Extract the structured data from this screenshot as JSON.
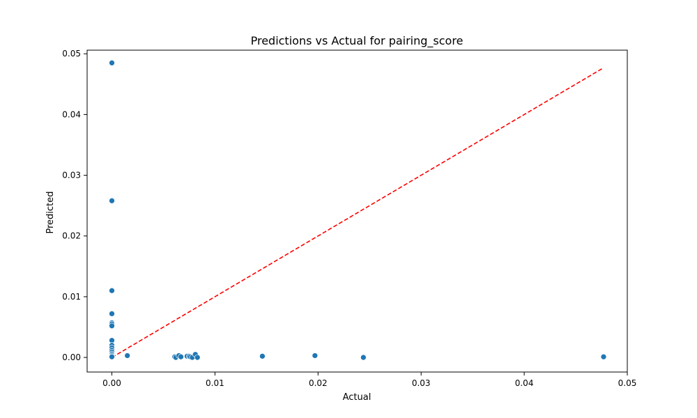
{
  "chart_data": {
    "type": "scatter",
    "title": "Predictions vs Actual for pairing_score",
    "xlabel": "Actual",
    "ylabel": "Predicted",
    "xlim": [
      -0.0024,
      0.05
    ],
    "ylim": [
      -0.0024,
      0.0506
    ],
    "xticks": [
      0.0,
      0.01,
      0.02,
      0.03,
      0.04,
      0.05
    ],
    "xtick_labels": [
      "0.00",
      "0.01",
      "0.02",
      "0.03",
      "0.04",
      "0.05"
    ],
    "yticks": [
      0.0,
      0.01,
      0.02,
      0.03,
      0.04,
      0.05
    ],
    "ytick_labels": [
      "0.00",
      "0.01",
      "0.02",
      "0.03",
      "0.04",
      "0.05"
    ],
    "grid": false,
    "colors": {
      "points": "#1f77b4",
      "reference_line": "#ff0000"
    },
    "series": [
      {
        "points": [
          [
            0.0,
            0.0485
          ],
          [
            0.0,
            0.0258
          ],
          [
            0.0,
            0.011
          ],
          [
            0.0,
            0.0072
          ],
          [
            0.0,
            0.0057
          ],
          [
            0.0,
            0.0055
          ],
          [
            0.0,
            0.0052
          ],
          [
            0.0,
            0.0028
          ],
          [
            0.0,
            0.002
          ],
          [
            0.0,
            0.0016
          ],
          [
            0.0,
            0.0012
          ],
          [
            0.0,
            0.0009
          ],
          [
            0.0,
            0.0006
          ],
          [
            0.0,
            0.0004
          ],
          [
            0.0,
            0.0002
          ],
          [
            0.0,
            0.0001
          ],
          [
            0.0015,
            0.0003
          ],
          [
            0.0061,
            0.0001
          ],
          [
            0.0062,
            0.0
          ],
          [
            0.0065,
            0.0003
          ],
          [
            0.0067,
            0.0001
          ],
          [
            0.0073,
            0.0002
          ],
          [
            0.0075,
            0.0002
          ],
          [
            0.0076,
            0.0001
          ],
          [
            0.0078,
            0.0
          ],
          [
            0.0081,
            0.0005
          ],
          [
            0.0083,
            0.0
          ],
          [
            0.0146,
            0.0002
          ],
          [
            0.0197,
            0.0003
          ],
          [
            0.0244,
            0.0
          ],
          [
            0.0477,
            0.0001
          ]
        ]
      }
    ],
    "reference_line": {
      "style": "dashed",
      "x": [
        0.0,
        0.0477
      ],
      "y": [
        0.0,
        0.0477
      ]
    }
  }
}
